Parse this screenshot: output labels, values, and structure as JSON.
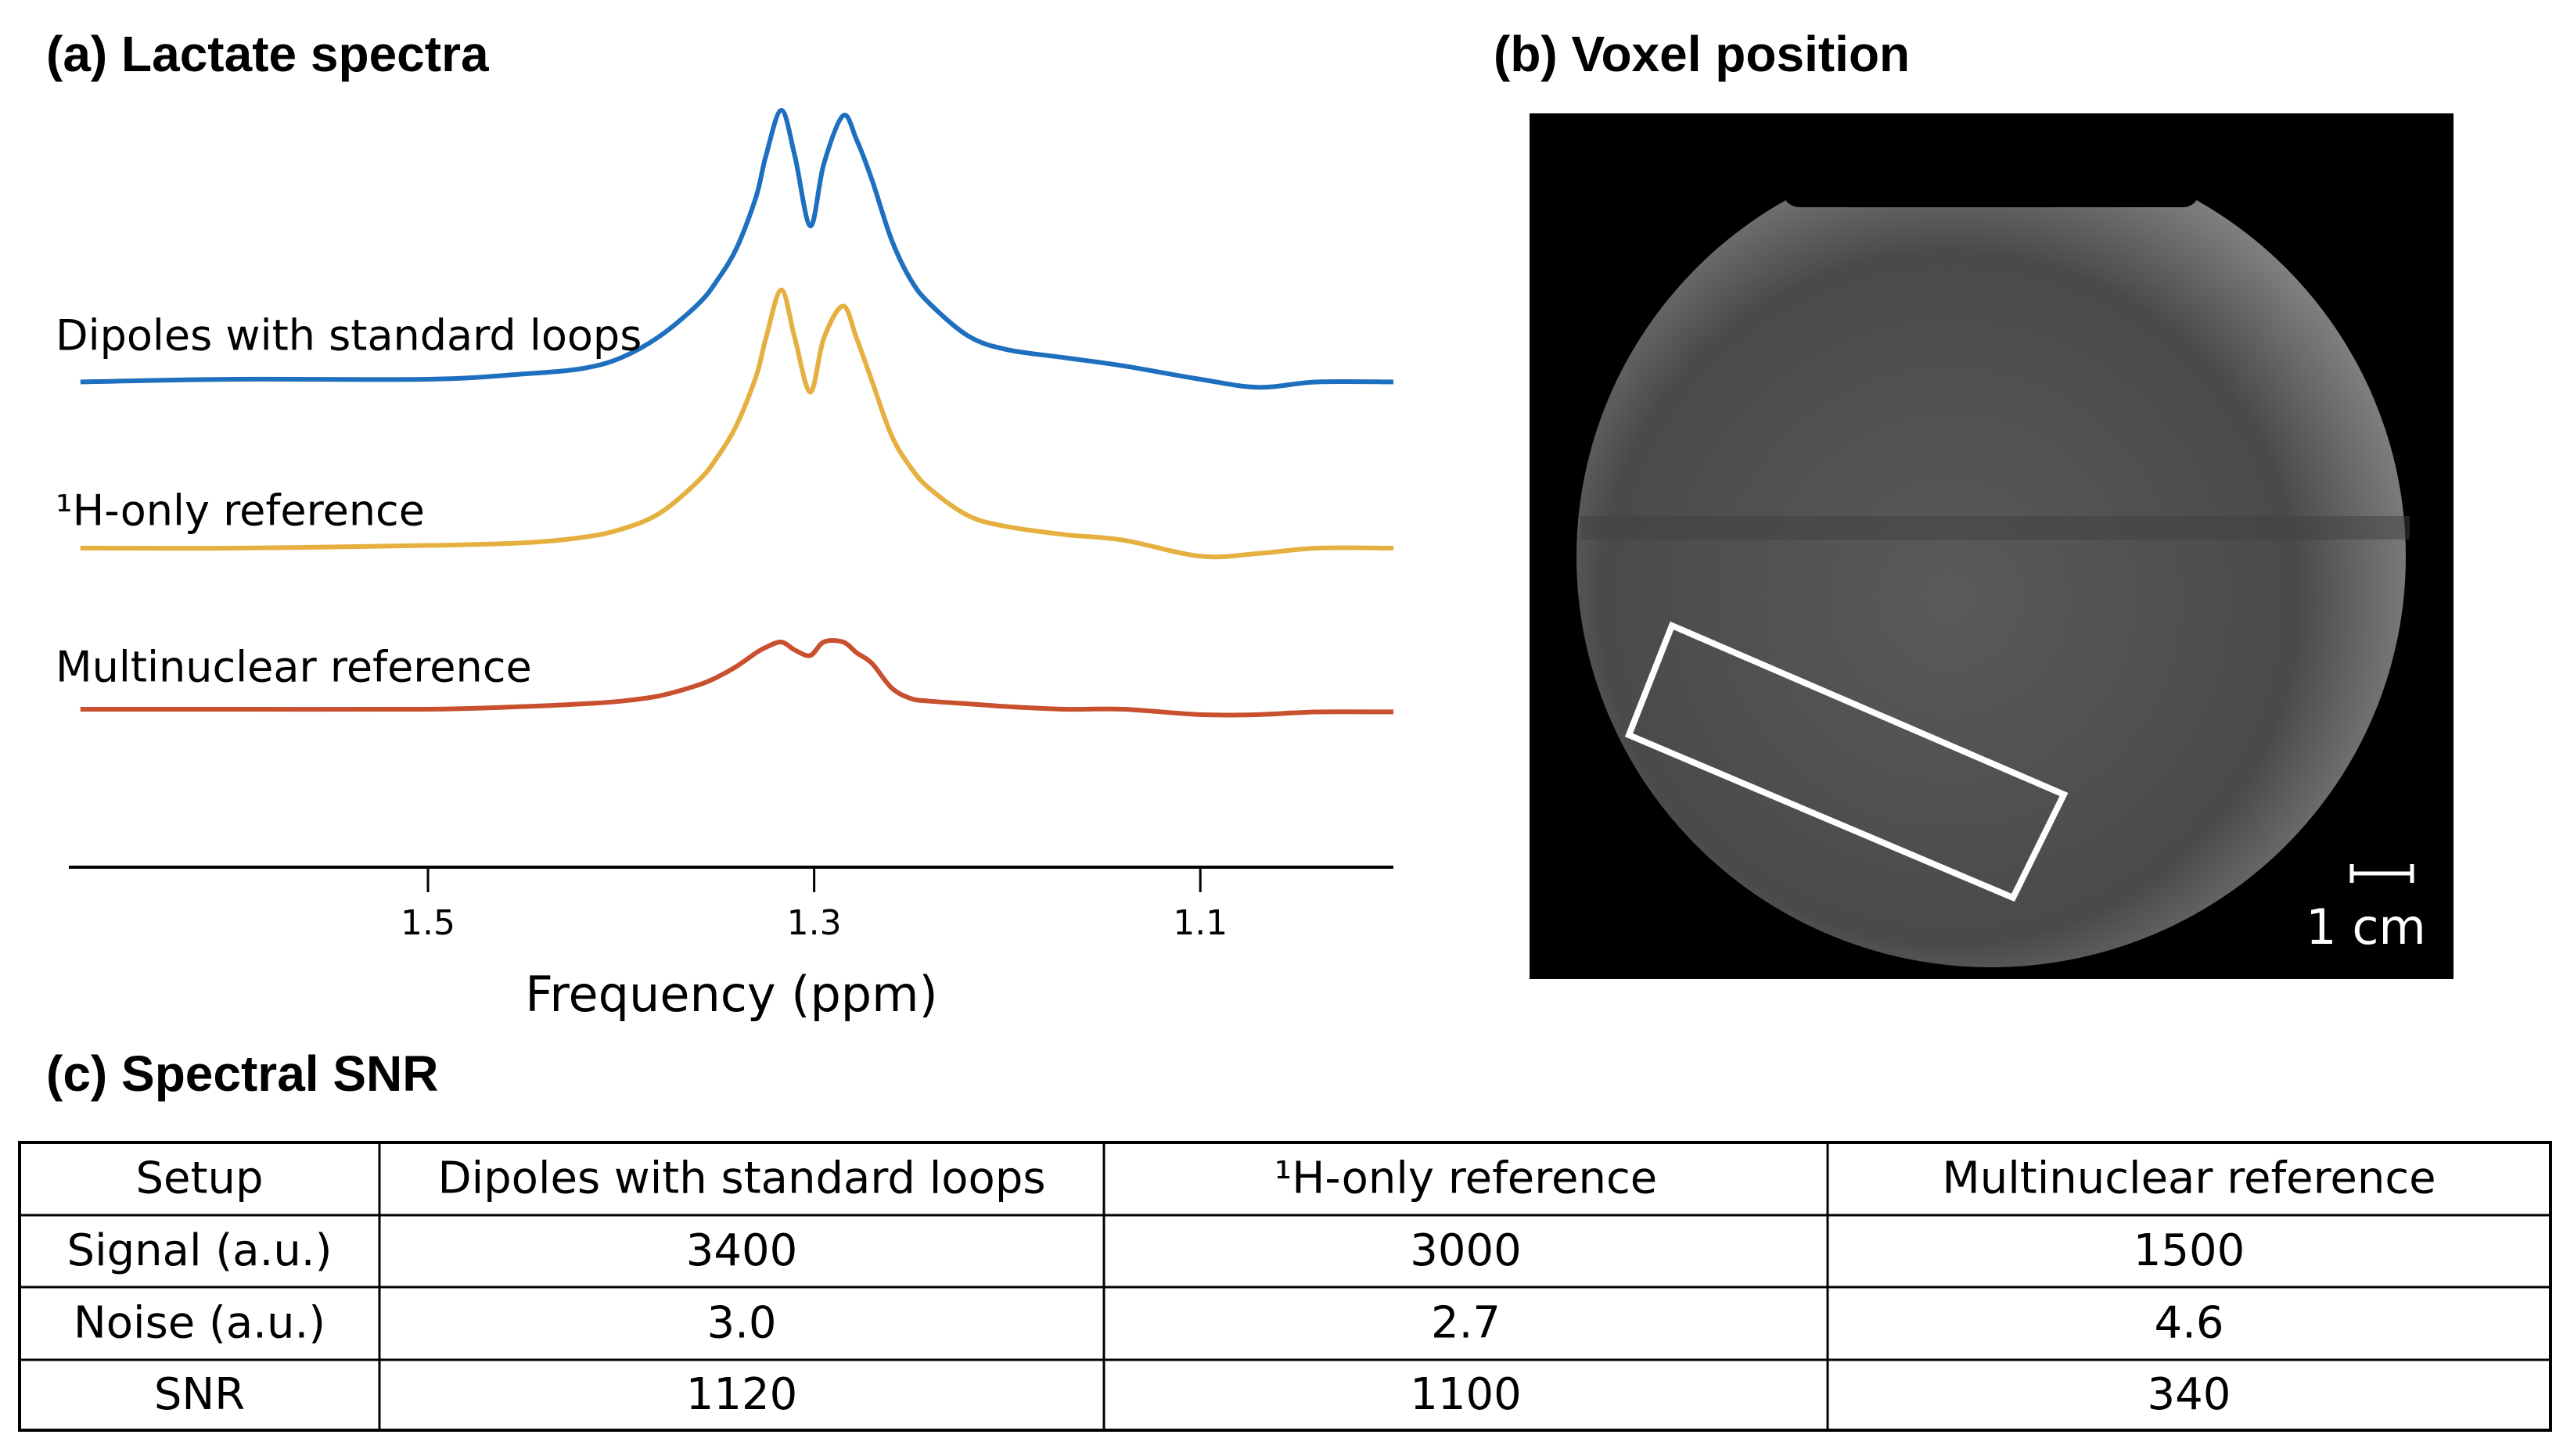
{
  "chart_data": {
    "type": "line",
    "title": "(a) Lactate spectra",
    "x_label": "Frequency (ppm)",
    "x": [
      1.68,
      1.6,
      1.5,
      1.45,
      1.42,
      1.4,
      1.38,
      1.36,
      1.35,
      1.34,
      1.33,
      1.325,
      1.317,
      1.31,
      1.302,
      1.295,
      1.285,
      1.278,
      1.27,
      1.26,
      1.25,
      1.24,
      1.22,
      1.2,
      1.17,
      1.14,
      1.1,
      1.07,
      1.04,
      1.0
    ],
    "series": [
      {
        "name": "Dipoles with standard loops",
        "color": "#1f6fbf",
        "values": [
          -0.01,
          0,
          0,
          0.02,
          0.04,
          0.08,
          0.16,
          0.28,
          0.37,
          0.49,
          0.68,
          0.83,
          1.0,
          0.83,
          0.57,
          0.8,
          0.98,
          0.89,
          0.74,
          0.52,
          0.37,
          0.28,
          0.16,
          0.11,
          0.08,
          0.05,
          0,
          -0.03,
          -0.01,
          -0.01
        ]
      },
      {
        "name": "¹H-only reference",
        "color": "#e6b040",
        "values": [
          0,
          0,
          0.01,
          0.02,
          0.04,
          0.07,
          0.13,
          0.25,
          0.34,
          0.46,
          0.64,
          0.78,
          0.96,
          0.78,
          0.58,
          0.78,
          0.9,
          0.78,
          0.62,
          0.42,
          0.3,
          0.22,
          0.12,
          0.08,
          0.05,
          0.03,
          -0.03,
          -0.02,
          0,
          0
        ]
      },
      {
        "name": "Multinuclear reference",
        "color": "#c8502e",
        "values": [
          0,
          0,
          0,
          0.01,
          0.02,
          0.03,
          0.05,
          0.09,
          0.12,
          0.16,
          0.21,
          0.23,
          0.25,
          0.22,
          0.2,
          0.25,
          0.25,
          0.21,
          0.17,
          0.08,
          0.04,
          0.03,
          0.02,
          0.01,
          0,
          0,
          -0.02,
          -0.02,
          -0.01,
          -0.01
        ]
      }
    ],
    "xlim": [
      1.686,
      1.0
    ],
    "xticks": [
      1.5,
      1.3,
      1.1
    ],
    "ylim": [
      0,
      1
    ]
  },
  "image": {
    "title": "(b) Voxel position",
    "scale_bar": "1 cm"
  },
  "table": {
    "title": "(c) Spectral SNR",
    "header": [
      "Setup",
      "Dipoles with standard loops",
      "¹H-only reference",
      "Multinuclear reference"
    ],
    "rows": [
      [
        "Signal (a.u.)",
        "3400",
        "3000",
        "1500"
      ],
      [
        "Noise (a.u.)",
        "3.0",
        "2.7",
        "4.6"
      ],
      [
        "SNR",
        "1120",
        "1100",
        "340"
      ]
    ]
  }
}
